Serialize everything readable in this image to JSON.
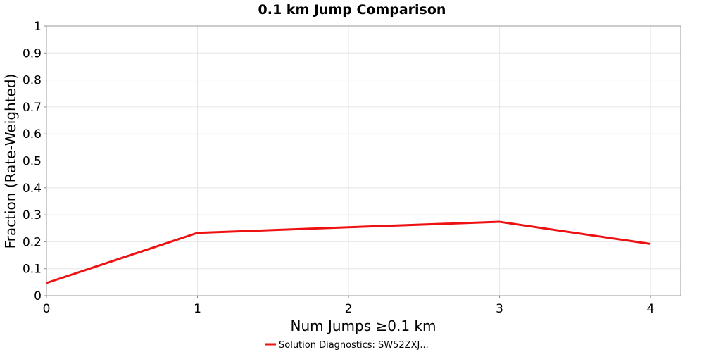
{
  "chart_data": {
    "type": "line",
    "title": "0.1 km Jump Comparison",
    "xlabel": "Num Jumps ≥0.1 km",
    "ylabel": "Fraction (Rate-Weighted)",
    "xlim": [
      0,
      4.2
    ],
    "ylim": [
      0,
      1
    ],
    "xticks": [
      0,
      1,
      2,
      3,
      4
    ],
    "yticks": [
      0,
      0.1,
      0.2,
      0.3,
      0.4,
      0.5,
      0.6,
      0.7,
      0.8,
      0.9,
      1
    ],
    "xtick_labels": [
      "0",
      "1",
      "2",
      "3",
      "4"
    ],
    "ytick_labels": [
      "0",
      "0.1",
      "0.2",
      "0.3",
      "0.4",
      "0.5",
      "0.6",
      "0.7",
      "0.8",
      "0.9",
      "1"
    ],
    "grid": true,
    "legend_position": "bottom-center",
    "series": [
      {
        "name": "Solution Diagnostics: SW52ZXJ...",
        "color": "#ee1111",
        "x": [
          0,
          1,
          2,
          3,
          4
        ],
        "values": [
          0.047,
          0.233,
          0.254,
          0.274,
          0.192
        ]
      }
    ]
  }
}
